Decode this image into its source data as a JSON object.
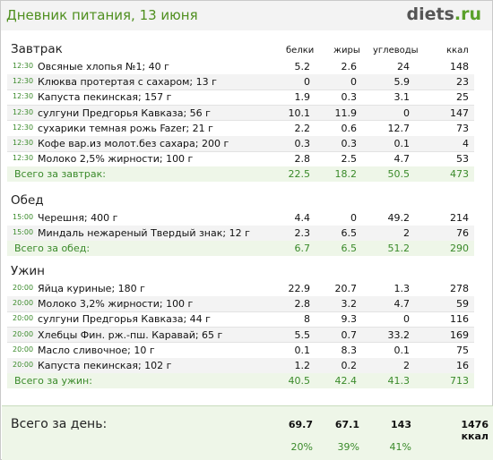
{
  "header": {
    "title": "Дневник питания, 13 июня",
    "logo_main": "diets",
    "logo_tld": ".ru"
  },
  "columns": [
    "белки",
    "жиры",
    "углеводы",
    "ккал"
  ],
  "meals": [
    {
      "name": "Завтрак",
      "items": [
        {
          "time": "12:30",
          "name": "Овсяные хлопья №1; 40 г",
          "p": "5.2",
          "f": "2.6",
          "c": "24",
          "kcal": "148"
        },
        {
          "time": "12:30",
          "name": "Клюква протертая с сахаром; 13 г",
          "p": "0",
          "f": "0",
          "c": "5.9",
          "kcal": "23"
        },
        {
          "time": "12:30",
          "name": "Капуста пекинская; 157 г",
          "p": "1.9",
          "f": "0.3",
          "c": "3.1",
          "kcal": "25"
        },
        {
          "time": "12:30",
          "name": "сулгуни Предгорья Кавказа; 56 г",
          "p": "10.1",
          "f": "11.9",
          "c": "0",
          "kcal": "147"
        },
        {
          "time": "12:30",
          "name": "сухарики темная рожь Fazer; 21 г",
          "p": "2.2",
          "f": "0.6",
          "c": "12.7",
          "kcal": "73"
        },
        {
          "time": "12:30",
          "name": "Кофе вар.из молот.без сахара; 200 г",
          "p": "0.3",
          "f": "0.3",
          "c": "0.1",
          "kcal": "4"
        },
        {
          "time": "12:30",
          "name": "Молоко 2,5% жирности; 100 г",
          "p": "2.8",
          "f": "2.5",
          "c": "4.7",
          "kcal": "53"
        }
      ],
      "total": {
        "label": "Всего за завтрак:",
        "p": "22.5",
        "f": "18.2",
        "c": "50.5",
        "kcal": "473"
      }
    },
    {
      "name": "Обед",
      "items": [
        {
          "time": "15:00",
          "name": "Черешня; 400 г",
          "p": "4.4",
          "f": "0",
          "c": "49.2",
          "kcal": "214"
        },
        {
          "time": "15:00",
          "name": "Миндаль нежареный Твердый знак; 12 г",
          "p": "2.3",
          "f": "6.5",
          "c": "2",
          "kcal": "76"
        }
      ],
      "total": {
        "label": "Всего за обед:",
        "p": "6.7",
        "f": "6.5",
        "c": "51.2",
        "kcal": "290"
      }
    },
    {
      "name": "Ужин",
      "items": [
        {
          "time": "20:00",
          "name": "Яйца куриные; 180 г",
          "p": "22.9",
          "f": "20.7",
          "c": "1.3",
          "kcal": "278"
        },
        {
          "time": "20:00",
          "name": "Молоко 3,2% жирности; 100 г",
          "p": "2.8",
          "f": "3.2",
          "c": "4.7",
          "kcal": "59"
        },
        {
          "time": "20:00",
          "name": "сулгуни Предгорья Кавказа; 44 г",
          "p": "8",
          "f": "9.3",
          "c": "0",
          "kcal": "116"
        },
        {
          "time": "20:00",
          "name": "Хлебцы Фин. рж.-пш. Каравай; 65 г",
          "p": "5.5",
          "f": "0.7",
          "c": "33.2",
          "kcal": "169"
        },
        {
          "time": "20:00",
          "name": "Масло сливочное; 10 г",
          "p": "0.1",
          "f": "8.3",
          "c": "0.1",
          "kcal": "75"
        },
        {
          "time": "20:00",
          "name": "Капуста пекинская; 102 г",
          "p": "1.2",
          "f": "0.2",
          "c": "2",
          "kcal": "16"
        }
      ],
      "total": {
        "label": "Всего за ужин:",
        "p": "40.5",
        "f": "42.4",
        "c": "41.3",
        "kcal": "713"
      }
    }
  ],
  "day": {
    "label": "Всего за день:",
    "p": "69.7",
    "f": "67.1",
    "c": "143",
    "kcal": "1476 ккал",
    "p_pct": "20%",
    "f_pct": "39%",
    "c_pct": "41%"
  }
}
